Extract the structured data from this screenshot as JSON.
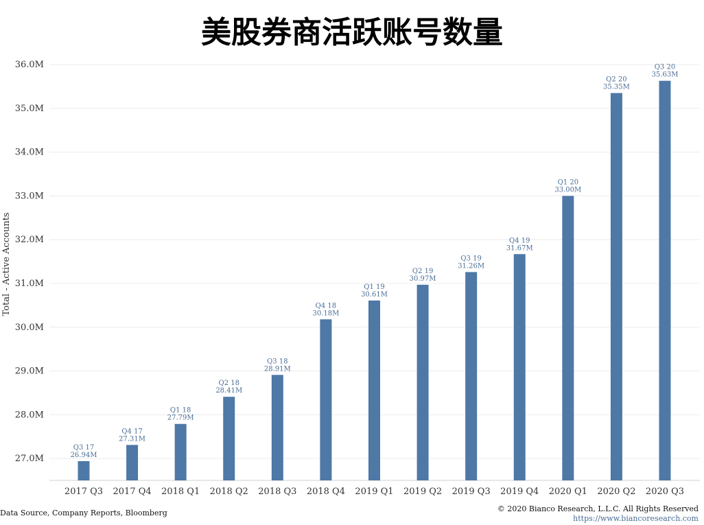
{
  "chart_data": {
    "type": "bar",
    "title": "美股券商活跃账号数量",
    "ylabel": "Total - Active Accounts",
    "xlabel": "",
    "ylim": [
      26.5,
      36.3
    ],
    "yticks": [
      "27.0M",
      "28.0M",
      "29.0M",
      "30.0M",
      "31.0M",
      "32.0M",
      "33.0M",
      "34.0M",
      "35.0M",
      "36.0M"
    ],
    "ytick_values": [
      27,
      28,
      29,
      30,
      31,
      32,
      33,
      34,
      35,
      36
    ],
    "grid": true,
    "bar_color": "#4e78a6",
    "categories": [
      "2017 Q3",
      "2017 Q4",
      "2018 Q1",
      "2018 Q2",
      "2018 Q3",
      "2018 Q4",
      "2019 Q1",
      "2019 Q2",
      "2019 Q3",
      "2019 Q4",
      "2020 Q1",
      "2020 Q2",
      "2020 Q3"
    ],
    "values": [
      26.94,
      27.31,
      27.79,
      28.41,
      28.91,
      30.18,
      30.61,
      30.97,
      31.26,
      31.67,
      33.0,
      35.35,
      35.63
    ],
    "data_labels": [
      {
        "quarter": "Q3 17",
        "value": "26.94M"
      },
      {
        "quarter": "Q4 17",
        "value": "27.31M"
      },
      {
        "quarter": "Q1 18",
        "value": "27.79M"
      },
      {
        "quarter": "Q2 18",
        "value": "28.41M"
      },
      {
        "quarter": "Q3 18",
        "value": "28.91M"
      },
      {
        "quarter": "Q4 18",
        "value": "30.18M"
      },
      {
        "quarter": "Q1 19",
        "value": "30.61M"
      },
      {
        "quarter": "Q2 19",
        "value": "30.97M"
      },
      {
        "quarter": "Q3 19",
        "value": "31.26M"
      },
      {
        "quarter": "Q4 19",
        "value": "31.67M"
      },
      {
        "quarter": "Q1 20",
        "value": "33.00M"
      },
      {
        "quarter": "Q2 20",
        "value": "35.35M"
      },
      {
        "quarter": "Q3 20",
        "value": "35.63M"
      }
    ]
  },
  "footer": {
    "source": "Data Source, Company Reports, Bloomberg",
    "copyright": "© 2020 Bianco Research, L.L.C. All Rights Reserved",
    "url": "https://www.biancoresearch.com"
  }
}
